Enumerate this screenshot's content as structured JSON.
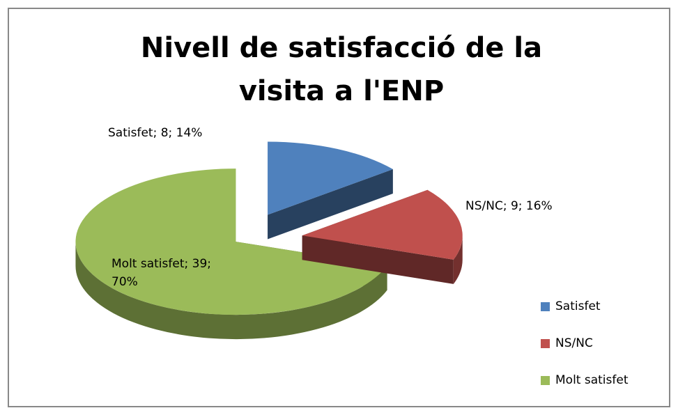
{
  "chart_data": {
    "type": "pie",
    "title": "Nivell de satisfacció de la visita a l'ENP",
    "categories": [
      "Satisfet",
      "NS/NC",
      "Molt satisfet"
    ],
    "values": [
      8,
      9,
      39
    ],
    "value_labels": [
      "Satisfet; 8; 14%",
      "NS/NC; 9; 16%",
      "Molt satisfet; 39; 70%"
    ],
    "colors": [
      "#4f81bd",
      "#c0504d",
      "#9bbb59"
    ],
    "legend": "right"
  }
}
